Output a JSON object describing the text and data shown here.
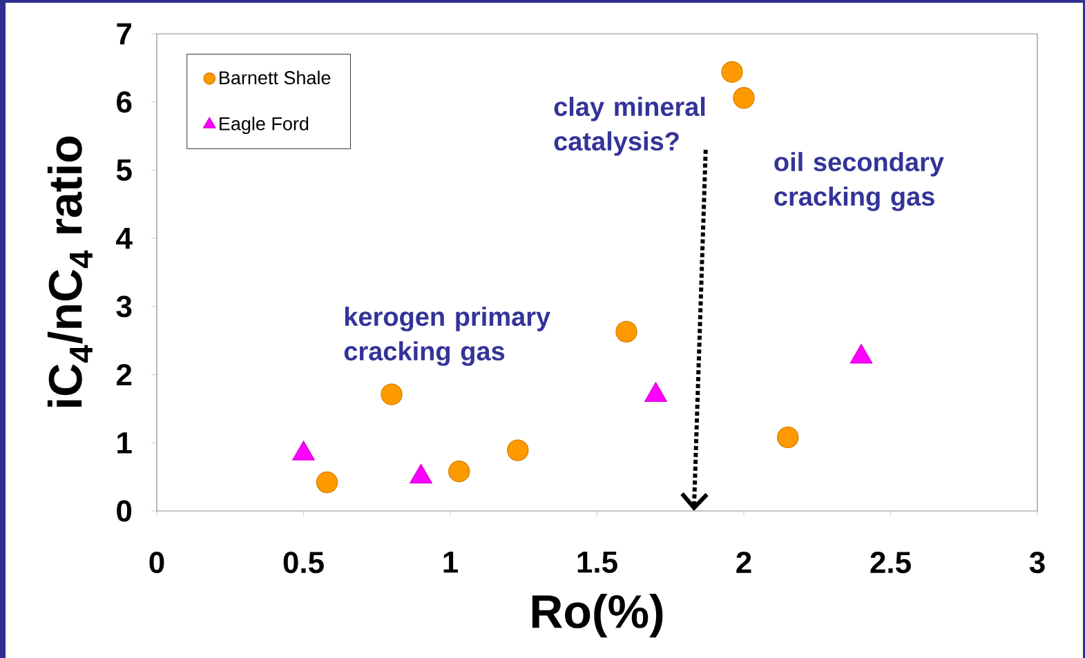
{
  "chart_data": {
    "type": "scatter",
    "xlabel": "Ro(%)",
    "ylabel": "iC$_{4}$/nC$_{4}$ ratio",
    "xlim": [
      0,
      3
    ],
    "ylim": [
      0,
      7
    ],
    "xticks": [
      0,
      0.5,
      1,
      1.5,
      2,
      2.5,
      3
    ],
    "yticks": [
      0,
      1,
      2,
      3,
      4,
      5,
      6,
      7
    ],
    "legend": "top left",
    "grid": false,
    "series": [
      {
        "name": "Barnett Shale",
        "color": "#ff9900",
        "marker": "circle",
        "x": [
          0.58,
          0.8,
          1.03,
          1.23,
          1.6,
          1.96,
          2.0,
          2.15
        ],
        "values": [
          0.42,
          1.71,
          0.58,
          0.89,
          2.63,
          6.44,
          6.06,
          1.08
        ]
      },
      {
        "name": "Eagle Ford",
        "color": "#ff00ff",
        "marker": "triangle",
        "x": [
          0.5,
          0.9,
          1.7,
          2.4
        ],
        "values": [
          0.84,
          0.5,
          1.7,
          2.26
        ]
      }
    ],
    "annotations": [
      "kerogen primary cracking gas",
      "clay mineral catalysis?",
      "oil secondary cracking gas"
    ]
  }
}
